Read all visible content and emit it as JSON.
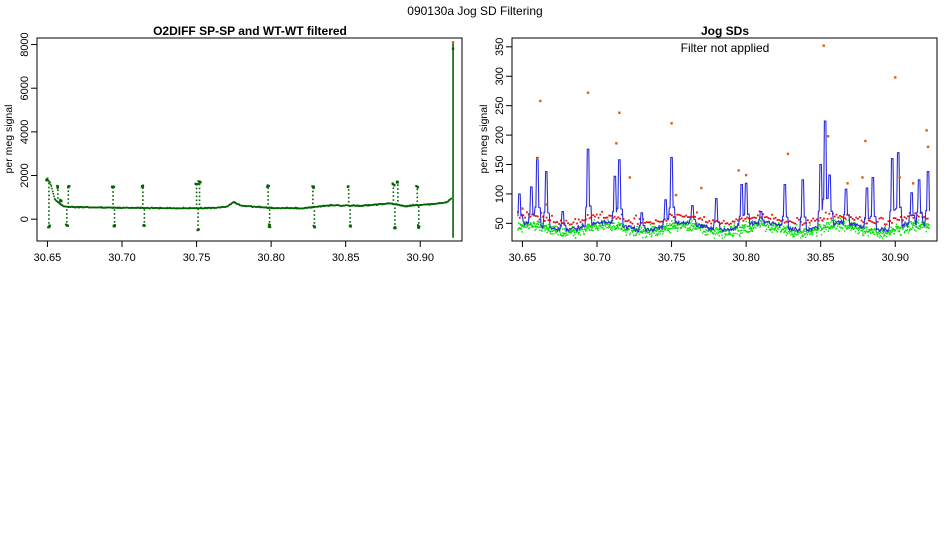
{
  "figure": {
    "title": "090130a   Jog SD Filtering"
  },
  "chart_data": [
    {
      "type": "scatter",
      "title": "O2DIFF SP-SP and WT-WT filtered",
      "xlabel": "",
      "ylabel": "per meg signal",
      "xlim": [
        30.643,
        30.928
      ],
      "ylim": [
        -1000,
        8300
      ],
      "xticks": [
        30.65,
        30.7,
        30.75,
        30.8,
        30.85,
        30.9
      ],
      "yticks": [
        0,
        2000,
        4000,
        6000,
        8000
      ],
      "grid": false,
      "colors": {
        "points": "#006400"
      },
      "baseline": [
        [
          30.65,
          1800
        ],
        [
          30.652,
          1650
        ],
        [
          30.655,
          900
        ],
        [
          30.66,
          620
        ],
        [
          30.663,
          560
        ],
        [
          30.68,
          540
        ],
        [
          30.7,
          520
        ],
        [
          30.72,
          510
        ],
        [
          30.74,
          500
        ],
        [
          30.76,
          510
        ],
        [
          30.77,
          560
        ],
        [
          30.775,
          780
        ],
        [
          30.78,
          620
        ],
        [
          30.8,
          510
        ],
        [
          30.82,
          500
        ],
        [
          30.83,
          560
        ],
        [
          30.84,
          640
        ],
        [
          30.86,
          610
        ],
        [
          30.88,
          720
        ],
        [
          30.89,
          600
        ],
        [
          30.9,
          650
        ],
        [
          30.91,
          700
        ],
        [
          30.918,
          780
        ],
        [
          30.921,
          950
        ],
        [
          30.922,
          800
        ]
      ],
      "excursions": [
        [
          30.65,
          1800
        ],
        [
          30.651,
          -350
        ],
        [
          30.657,
          1500
        ],
        [
          30.659,
          850
        ],
        [
          30.663,
          -300
        ],
        [
          30.664,
          1500
        ],
        [
          30.694,
          1500
        ],
        [
          30.695,
          -300
        ],
        [
          30.714,
          1500
        ],
        [
          30.715,
          -300
        ],
        [
          30.75,
          1600
        ],
        [
          30.751,
          -450
        ],
        [
          30.752,
          1700
        ],
        [
          30.798,
          1500
        ],
        [
          30.799,
          -300
        ],
        [
          30.828,
          1500
        ],
        [
          30.829,
          -350
        ],
        [
          30.852,
          1500
        ],
        [
          30.853,
          -300
        ],
        [
          30.882,
          1600
        ],
        [
          30.883,
          -400
        ],
        [
          30.885,
          1700
        ],
        [
          30.898,
          1500
        ],
        [
          30.899,
          -350
        ]
      ],
      "spike": {
        "x": 30.922,
        "low": -850,
        "high": 8100,
        "mid": 7800
      }
    },
    {
      "type": "line",
      "title": "Jog SDs",
      "annotation": "Filter not applied",
      "xlabel": "",
      "ylabel": "per meg signal",
      "xlim": [
        30.643,
        30.928
      ],
      "ylim": [
        20,
        365
      ],
      "xticks": [
        30.65,
        30.7,
        30.75,
        30.8,
        30.85,
        30.9
      ],
      "yticks": [
        50,
        100,
        150,
        200,
        250,
        300,
        350
      ],
      "grid": false,
      "colors": {
        "blue": "#2b2bd9",
        "red": "#e3120b",
        "green": "#00e000",
        "orange": "#d9600f"
      },
      "peaks": [
        [
          30.648,
          100
        ],
        [
          30.656,
          112
        ],
        [
          30.66,
          162
        ],
        [
          30.666,
          138
        ],
        [
          30.677,
          70
        ],
        [
          30.694,
          176
        ],
        [
          30.712,
          130
        ],
        [
          30.715,
          158
        ],
        [
          30.73,
          68
        ],
        [
          30.746,
          90
        ],
        [
          30.75,
          162
        ],
        [
          30.764,
          80
        ],
        [
          30.78,
          92
        ],
        [
          30.797,
          116
        ],
        [
          30.8,
          118
        ],
        [
          30.81,
          70
        ],
        [
          30.826,
          116
        ],
        [
          30.838,
          124
        ],
        [
          30.85,
          150
        ],
        [
          30.853,
          224
        ],
        [
          30.856,
          132
        ],
        [
          30.867,
          108
        ],
        [
          30.881,
          110
        ],
        [
          30.885,
          128
        ],
        [
          30.898,
          160
        ],
        [
          30.902,
          170
        ],
        [
          30.911,
          102
        ],
        [
          30.916,
          124
        ],
        [
          30.922,
          138
        ]
      ],
      "outliers": [
        [
          30.65,
          75
        ],
        [
          30.66,
          160
        ],
        [
          30.662,
          258
        ],
        [
          30.666,
          82
        ],
        [
          30.694,
          272
        ],
        [
          30.713,
          186
        ],
        [
          30.715,
          238
        ],
        [
          30.722,
          128
        ],
        [
          30.75,
          220
        ],
        [
          30.753,
          98
        ],
        [
          30.77,
          110
        ],
        [
          30.795,
          140
        ],
        [
          30.8,
          132
        ],
        [
          30.828,
          168
        ],
        [
          30.852,
          352
        ],
        [
          30.855,
          198
        ],
        [
          30.868,
          118
        ],
        [
          30.878,
          128
        ],
        [
          30.88,
          190
        ],
        [
          30.9,
          298
        ],
        [
          30.903,
          128
        ],
        [
          30.912,
          118
        ],
        [
          30.921,
          208
        ],
        [
          30.922,
          180
        ]
      ]
    }
  ]
}
